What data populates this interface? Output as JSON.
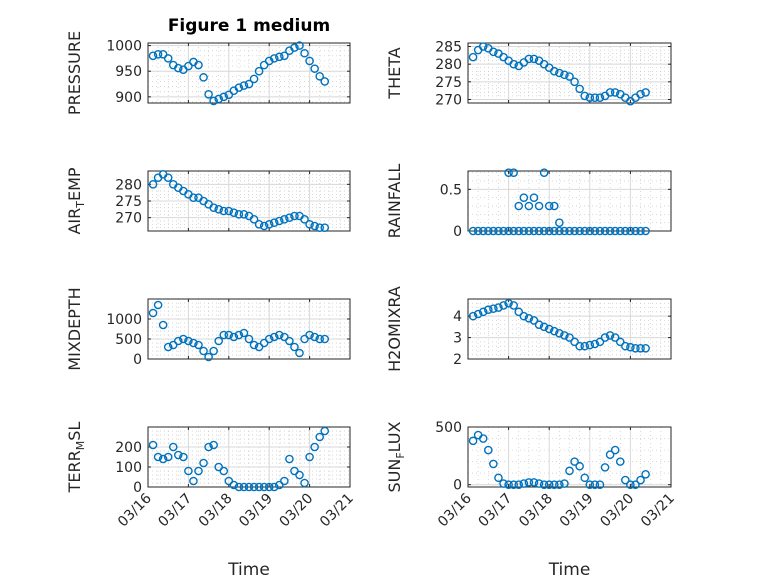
{
  "colors": {
    "series": "#0072BD",
    "axis": "#262626"
  },
  "chart_data": [
    {
      "type": "scatter",
      "title": "Figure 1 medium",
      "ylabel": "PRESSURE",
      "ylim": [
        888,
        1005
      ],
      "yticks": [
        "900",
        "950",
        "1000"
      ],
      "ytick_values": [
        900,
        950,
        1000
      ],
      "xlim": [
        "03/16",
        "03/21"
      ],
      "xticks": [
        "03/16",
        "03/17",
        "03/18",
        "03/19",
        "03/20",
        "03/21"
      ],
      "show_xticklabels": false,
      "xlabel": "",
      "x": [
        "2020-03-16 03:00",
        "2020-03-16 06:00",
        "2020-03-16 09:00",
        "2020-03-16 12:00",
        "2020-03-16 15:00",
        "2020-03-16 18:00",
        "2020-03-16 21:00",
        "2020-03-17 00:00",
        "2020-03-17 03:00",
        "2020-03-17 06:00",
        "2020-03-17 09:00",
        "2020-03-17 12:00",
        "2020-03-17 15:00",
        "2020-03-17 18:00",
        "2020-03-17 21:00",
        "2020-03-18 00:00",
        "2020-03-18 03:00",
        "2020-03-18 06:00",
        "2020-03-18 09:00",
        "2020-03-18 12:00",
        "2020-03-18 15:00",
        "2020-03-18 18:00",
        "2020-03-18 21:00",
        "2020-03-19 00:00",
        "2020-03-19 03:00",
        "2020-03-19 06:00",
        "2020-03-19 09:00",
        "2020-03-19 12:00",
        "2020-03-19 15:00",
        "2020-03-19 18:00",
        "2020-03-19 21:00",
        "2020-03-20 00:00",
        "2020-03-20 03:00",
        "2020-03-20 06:00",
        "2020-03-20 09:00"
      ],
      "y": [
        980,
        983,
        983,
        975,
        962,
        956,
        953,
        960,
        968,
        962,
        938,
        905,
        892,
        896,
        900,
        904,
        912,
        918,
        922,
        925,
        935,
        950,
        962,
        970,
        975,
        978,
        980,
        990,
        996,
        1000,
        985,
        970,
        955,
        940,
        930
      ]
    },
    {
      "type": "scatter",
      "ylabel": "THETA",
      "ylim": [
        269,
        286
      ],
      "yticks": [
        "270",
        "275",
        "280",
        "285"
      ],
      "ytick_values": [
        270,
        275,
        280,
        285
      ],
      "xlim": [
        "03/16",
        "03/21"
      ],
      "xticks": [
        "03/16",
        "03/17",
        "03/18",
        "03/19",
        "03/20",
        "03/21"
      ],
      "show_xticklabels": false,
      "xlabel": "",
      "x": [
        "2020-03-16 03:00",
        "2020-03-16 06:00",
        "2020-03-16 09:00",
        "2020-03-16 12:00",
        "2020-03-16 15:00",
        "2020-03-16 18:00",
        "2020-03-16 21:00",
        "2020-03-17 00:00",
        "2020-03-17 03:00",
        "2020-03-17 06:00",
        "2020-03-17 09:00",
        "2020-03-17 12:00",
        "2020-03-17 15:00",
        "2020-03-17 18:00",
        "2020-03-17 21:00",
        "2020-03-18 00:00",
        "2020-03-18 03:00",
        "2020-03-18 06:00",
        "2020-03-18 09:00",
        "2020-03-18 12:00",
        "2020-03-18 15:00",
        "2020-03-18 18:00",
        "2020-03-18 21:00",
        "2020-03-19 00:00",
        "2020-03-19 03:00",
        "2020-03-19 06:00",
        "2020-03-19 09:00",
        "2020-03-19 12:00",
        "2020-03-19 15:00",
        "2020-03-19 18:00",
        "2020-03-19 21:00",
        "2020-03-20 00:00",
        "2020-03-20 03:00",
        "2020-03-20 06:00",
        "2020-03-20 09:00"
      ],
      "y": [
        282,
        284,
        285,
        284.5,
        283.5,
        283,
        282,
        281,
        280,
        279.5,
        280.5,
        281.5,
        281.5,
        281,
        280,
        279,
        278,
        277.5,
        277,
        276.5,
        275,
        273,
        271,
        270.5,
        270.5,
        270.5,
        271,
        272,
        272,
        271.5,
        270.5,
        269.5,
        270.5,
        271.5,
        272
      ]
    },
    {
      "type": "scatter",
      "ylabel": "AIR",
      "ylabel_sub": "T",
      "ylabel_rest": "EMP",
      "ylim": [
        266,
        284
      ],
      "yticks": [
        "270",
        "275",
        "280"
      ],
      "ytick_values": [
        270,
        275,
        280
      ],
      "xlim": [
        "03/16",
        "03/21"
      ],
      "xticks": [
        "03/16",
        "03/17",
        "03/18",
        "03/19",
        "03/20",
        "03/21"
      ],
      "show_xticklabels": false,
      "xlabel": "",
      "x": [
        "2020-03-16 03:00",
        "2020-03-16 06:00",
        "2020-03-16 09:00",
        "2020-03-16 12:00",
        "2020-03-16 15:00",
        "2020-03-16 18:00",
        "2020-03-16 21:00",
        "2020-03-17 00:00",
        "2020-03-17 03:00",
        "2020-03-17 06:00",
        "2020-03-17 09:00",
        "2020-03-17 12:00",
        "2020-03-17 15:00",
        "2020-03-17 18:00",
        "2020-03-17 21:00",
        "2020-03-18 00:00",
        "2020-03-18 03:00",
        "2020-03-18 06:00",
        "2020-03-18 09:00",
        "2020-03-18 12:00",
        "2020-03-18 15:00",
        "2020-03-18 18:00",
        "2020-03-18 21:00",
        "2020-03-19 00:00",
        "2020-03-19 03:00",
        "2020-03-19 06:00",
        "2020-03-19 09:00",
        "2020-03-19 12:00",
        "2020-03-19 15:00",
        "2020-03-19 18:00",
        "2020-03-19 21:00",
        "2020-03-20 00:00",
        "2020-03-20 03:00",
        "2020-03-20 06:00",
        "2020-03-20 09:00"
      ],
      "y": [
        280,
        282,
        283,
        282,
        280,
        279,
        278,
        277,
        276,
        276,
        275,
        274,
        273,
        272.5,
        272,
        272,
        271.5,
        271,
        271,
        270.5,
        269.5,
        268,
        267.5,
        268,
        268.5,
        269,
        269.5,
        270,
        270.5,
        270.5,
        269.5,
        268,
        267.5,
        267,
        267
      ]
    },
    {
      "type": "scatter",
      "ylabel": "RAINFALL",
      "ylim": [
        0,
        0.72
      ],
      "yticks": [
        "0",
        "0.5"
      ],
      "ytick_values": [
        0,
        0.5
      ],
      "xlim": [
        "03/16",
        "03/21"
      ],
      "xticks": [
        "03/16",
        "03/17",
        "03/18",
        "03/19",
        "03/20",
        "03/21"
      ],
      "show_xticklabels": false,
      "xlabel": "",
      "x": [
        "2020-03-16 03:00",
        "2020-03-16 06:00",
        "2020-03-16 09:00",
        "2020-03-16 12:00",
        "2020-03-16 15:00",
        "2020-03-16 18:00",
        "2020-03-16 21:00",
        "2020-03-17 00:00",
        "2020-03-17 03:00",
        "2020-03-17 06:00",
        "2020-03-17 09:00",
        "2020-03-17 12:00",
        "2020-03-17 15:00",
        "2020-03-17 18:00",
        "2020-03-17 21:00",
        "2020-03-18 00:00",
        "2020-03-18 03:00",
        "2020-03-18 06:00",
        "2020-03-18 09:00",
        "2020-03-18 12:00",
        "2020-03-18 15:00",
        "2020-03-18 18:00",
        "2020-03-18 21:00",
        "2020-03-19 00:00",
        "2020-03-19 03:00",
        "2020-03-19 06:00",
        "2020-03-19 09:00",
        "2020-03-19 12:00",
        "2020-03-19 15:00",
        "2020-03-19 18:00",
        "2020-03-19 21:00",
        "2020-03-20 00:00",
        "2020-03-20 03:00",
        "2020-03-20 06:00",
        "2020-03-20 09:00",
        "2020-03-17 00:00",
        "2020-03-17 03:00",
        "2020-03-17 06:00",
        "2020-03-17 09:00",
        "2020-03-17 12:00",
        "2020-03-17 15:00",
        "2020-03-17 18:00",
        "2020-03-17 21:00",
        "2020-03-18 00:00",
        "2020-03-18 03:00",
        "2020-03-18 06:00"
      ],
      "y": [
        0,
        0,
        0,
        0,
        0,
        0,
        0,
        0,
        0,
        0,
        0,
        0,
        0,
        0,
        0,
        0,
        0,
        0,
        0,
        0,
        0,
        0,
        0,
        0,
        0,
        0,
        0,
        0,
        0,
        0,
        0,
        0,
        0,
        0,
        0,
        0.7,
        0.7,
        0.3,
        0.4,
        0.3,
        0.4,
        0.3,
        0.7,
        0.3,
        0.3,
        0.1
      ]
    },
    {
      "type": "scatter",
      "ylabel": "MIXDEPTH",
      "ylim": [
        0,
        1500
      ],
      "yticks": [
        "0",
        "500",
        "1000"
      ],
      "ytick_values": [
        0,
        500,
        1000
      ],
      "xlim": [
        "03/16",
        "03/21"
      ],
      "xticks": [
        "03/16",
        "03/17",
        "03/18",
        "03/19",
        "03/20",
        "03/21"
      ],
      "show_xticklabels": false,
      "xlabel": "",
      "x": [
        "2020-03-16 03:00",
        "2020-03-16 06:00",
        "2020-03-16 09:00",
        "2020-03-16 12:00",
        "2020-03-16 15:00",
        "2020-03-16 18:00",
        "2020-03-16 21:00",
        "2020-03-17 00:00",
        "2020-03-17 03:00",
        "2020-03-17 06:00",
        "2020-03-17 09:00",
        "2020-03-17 12:00",
        "2020-03-17 15:00",
        "2020-03-17 18:00",
        "2020-03-17 21:00",
        "2020-03-18 00:00",
        "2020-03-18 03:00",
        "2020-03-18 06:00",
        "2020-03-18 09:00",
        "2020-03-18 12:00",
        "2020-03-18 15:00",
        "2020-03-18 18:00",
        "2020-03-18 21:00",
        "2020-03-19 00:00",
        "2020-03-19 03:00",
        "2020-03-19 06:00",
        "2020-03-19 09:00",
        "2020-03-19 12:00",
        "2020-03-19 15:00",
        "2020-03-19 18:00",
        "2020-03-19 21:00",
        "2020-03-20 00:00",
        "2020-03-20 03:00",
        "2020-03-20 06:00",
        "2020-03-20 09:00"
      ],
      "y": [
        1150,
        1350,
        850,
        300,
        350,
        450,
        500,
        450,
        400,
        350,
        200,
        50,
        200,
        450,
        600,
        600,
        550,
        600,
        650,
        500,
        350,
        300,
        400,
        500,
        550,
        600,
        550,
        450,
        300,
        150,
        500,
        600,
        550,
        500,
        500
      ]
    },
    {
      "type": "scatter",
      "ylabel": "H2OMIXRA",
      "ylim": [
        2,
        4.8
      ],
      "yticks": [
        "2",
        "3",
        "4"
      ],
      "ytick_values": [
        2,
        3,
        4
      ],
      "xlim": [
        "03/16",
        "03/21"
      ],
      "xticks": [
        "03/16",
        "03/17",
        "03/18",
        "03/19",
        "03/20",
        "03/21"
      ],
      "show_xticklabels": false,
      "xlabel": "",
      "x": [
        "2020-03-16 03:00",
        "2020-03-16 06:00",
        "2020-03-16 09:00",
        "2020-03-16 12:00",
        "2020-03-16 15:00",
        "2020-03-16 18:00",
        "2020-03-16 21:00",
        "2020-03-17 00:00",
        "2020-03-17 03:00",
        "2020-03-17 06:00",
        "2020-03-17 09:00",
        "2020-03-17 12:00",
        "2020-03-17 15:00",
        "2020-03-17 18:00",
        "2020-03-17 21:00",
        "2020-03-18 00:00",
        "2020-03-18 03:00",
        "2020-03-18 06:00",
        "2020-03-18 09:00",
        "2020-03-18 12:00",
        "2020-03-18 15:00",
        "2020-03-18 18:00",
        "2020-03-18 21:00",
        "2020-03-19 00:00",
        "2020-03-19 03:00",
        "2020-03-19 06:00",
        "2020-03-19 09:00",
        "2020-03-19 12:00",
        "2020-03-19 15:00",
        "2020-03-19 18:00",
        "2020-03-19 21:00",
        "2020-03-20 00:00",
        "2020-03-20 03:00",
        "2020-03-20 06:00",
        "2020-03-20 09:00"
      ],
      "y": [
        4,
        4.1,
        4.2,
        4.3,
        4.35,
        4.4,
        4.5,
        4.6,
        4.5,
        4.2,
        4,
        3.9,
        3.8,
        3.6,
        3.5,
        3.4,
        3.3,
        3.2,
        3.1,
        3,
        2.8,
        2.6,
        2.6,
        2.65,
        2.7,
        2.8,
        3,
        3.1,
        3,
        2.8,
        2.6,
        2.55,
        2.5,
        2.5,
        2.5
      ]
    },
    {
      "type": "scatter",
      "ylabel": "TERR",
      "ylabel_sub": "M",
      "ylabel_rest": "SL",
      "ylim": [
        0,
        300
      ],
      "yticks": [
        "0",
        "100",
        "200"
      ],
      "ytick_values": [
        0,
        100,
        200
      ],
      "xlim": [
        "03/16",
        "03/21"
      ],
      "xticks": [
        "03/16",
        "03/17",
        "03/18",
        "03/19",
        "03/20",
        "03/21"
      ],
      "show_xticklabels": true,
      "xlabel": "Time",
      "x": [
        "2020-03-16 03:00",
        "2020-03-16 06:00",
        "2020-03-16 09:00",
        "2020-03-16 12:00",
        "2020-03-16 15:00",
        "2020-03-16 18:00",
        "2020-03-16 21:00",
        "2020-03-17 00:00",
        "2020-03-17 03:00",
        "2020-03-17 06:00",
        "2020-03-17 09:00",
        "2020-03-17 12:00",
        "2020-03-17 15:00",
        "2020-03-17 18:00",
        "2020-03-17 21:00",
        "2020-03-18 00:00",
        "2020-03-18 03:00",
        "2020-03-18 06:00",
        "2020-03-18 09:00",
        "2020-03-18 12:00",
        "2020-03-18 15:00",
        "2020-03-18 18:00",
        "2020-03-18 21:00",
        "2020-03-19 00:00",
        "2020-03-19 03:00",
        "2020-03-19 06:00",
        "2020-03-19 09:00",
        "2020-03-19 12:00",
        "2020-03-19 15:00",
        "2020-03-19 18:00",
        "2020-03-19 21:00",
        "2020-03-20 00:00",
        "2020-03-20 03:00",
        "2020-03-20 06:00",
        "2020-03-20 09:00"
      ],
      "y": [
        210,
        150,
        140,
        150,
        200,
        160,
        150,
        80,
        30,
        80,
        120,
        200,
        210,
        100,
        80,
        30,
        10,
        0,
        0,
        0,
        0,
        0,
        0,
        0,
        0,
        10,
        30,
        140,
        80,
        60,
        20,
        150,
        200,
        250,
        280
      ]
    },
    {
      "type": "scatter",
      "ylabel": "SUN",
      "ylabel_sub": "F",
      "ylabel_rest": "LUX",
      "ylim": [
        -20,
        500
      ],
      "yticks": [
        "0",
        "500"
      ],
      "ytick_values": [
        0,
        500
      ],
      "xlim": [
        "03/16",
        "03/21"
      ],
      "xticks": [
        "03/16",
        "03/17",
        "03/18",
        "03/19",
        "03/20",
        "03/21"
      ],
      "show_xticklabels": true,
      "xlabel": "Time",
      "x": [
        "2020-03-16 03:00",
        "2020-03-16 06:00",
        "2020-03-16 09:00",
        "2020-03-16 12:00",
        "2020-03-16 15:00",
        "2020-03-16 18:00",
        "2020-03-16 21:00",
        "2020-03-17 00:00",
        "2020-03-17 03:00",
        "2020-03-17 06:00",
        "2020-03-17 09:00",
        "2020-03-17 12:00",
        "2020-03-17 15:00",
        "2020-03-17 18:00",
        "2020-03-17 21:00",
        "2020-03-18 00:00",
        "2020-03-18 03:00",
        "2020-03-18 06:00",
        "2020-03-18 09:00",
        "2020-03-18 12:00",
        "2020-03-18 15:00",
        "2020-03-18 18:00",
        "2020-03-18 21:00",
        "2020-03-19 00:00",
        "2020-03-19 03:00",
        "2020-03-19 06:00",
        "2020-03-19 09:00",
        "2020-03-19 12:00",
        "2020-03-19 15:00",
        "2020-03-19 18:00",
        "2020-03-19 21:00",
        "2020-03-20 00:00",
        "2020-03-20 03:00",
        "2020-03-20 06:00",
        "2020-03-20 09:00"
      ],
      "y": [
        380,
        430,
        400,
        300,
        180,
        60,
        10,
        0,
        0,
        0,
        10,
        20,
        20,
        10,
        0,
        0,
        0,
        0,
        10,
        120,
        200,
        160,
        60,
        0,
        0,
        0,
        150,
        260,
        300,
        200,
        40,
        0,
        0,
        40,
        90
      ]
    }
  ]
}
